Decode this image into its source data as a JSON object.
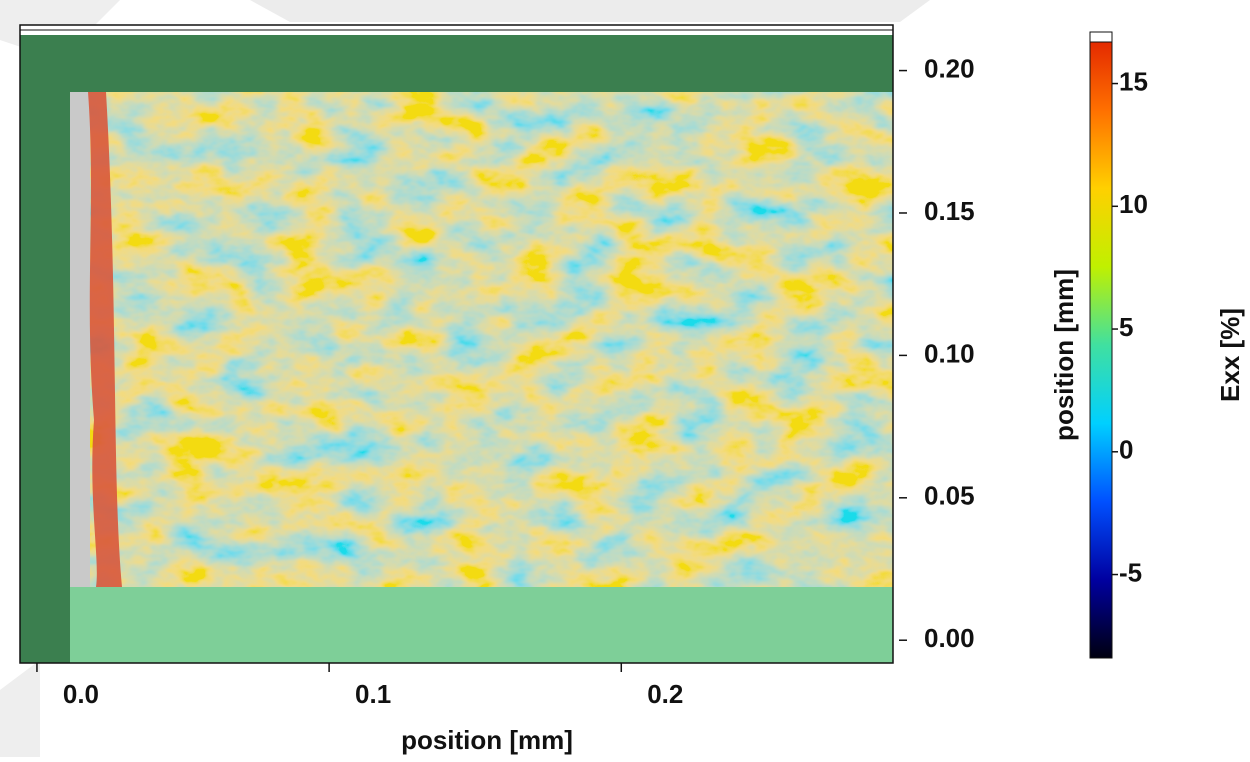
{
  "chart_data": {
    "type": "image",
    "xlabel": "position [mm]",
    "ylabel": "position [mm]",
    "xlim": [
      -0.0058,
      0.293
    ],
    "xticks": [
      {
        "value": 0,
        "label": "0.0"
      },
      0.1,
      0.2
    ],
    "ylim": [
      -0.008,
      0.216
    ],
    "yticks": [
      {
        "value": 0.2,
        "label": "0.20"
      },
      0.15,
      {
        "value": 0.1,
        "label": "0.10"
      },
      0.05,
      {
        "value": 0,
        "label": "0.00"
      }
    ],
    "colorbar": {
      "label": "Exx [%]",
      "lim": [
        -8.4,
        17.1
      ],
      "ticks": [
        15,
        10,
        5,
        0,
        -5
      ],
      "colors": [
        "#000010",
        "#0000a0",
        "#0050ff",
        "#00d0ff",
        "#40e0a0",
        "#c0f000",
        "#ffd000",
        "#ff7000",
        "#e02000"
      ]
    }
  }
}
